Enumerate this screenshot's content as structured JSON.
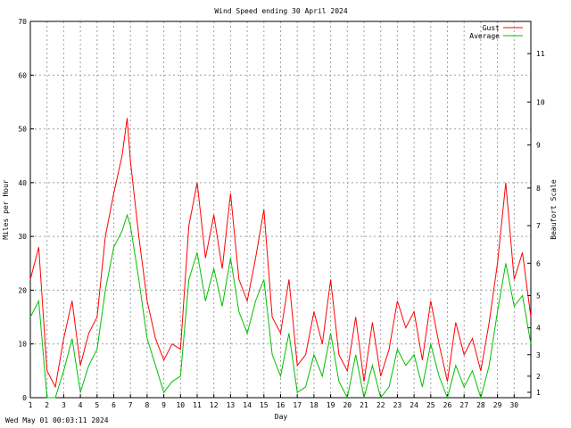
{
  "chart_data": {
    "type": "line",
    "title": "Wind Speed ending 30 April 2024",
    "xlabel": "Day",
    "ylabel": "Miles per Hour",
    "y2label": "Beaufort Scale",
    "ylim": [
      0,
      70
    ],
    "yticks": [
      0,
      10,
      20,
      30,
      40,
      50,
      60,
      70
    ],
    "xlim": [
      1,
      31
    ],
    "xticks": [
      1,
      2,
      3,
      4,
      5,
      6,
      7,
      8,
      9,
      10,
      11,
      12,
      13,
      14,
      15,
      16,
      17,
      18,
      19,
      20,
      21,
      22,
      23,
      24,
      25,
      26,
      27,
      28,
      29,
      30
    ],
    "beaufort_ticks": [
      {
        "label": "1",
        "mph": 1
      },
      {
        "label": "2",
        "mph": 4
      },
      {
        "label": "3",
        "mph": 8
      },
      {
        "label": "4",
        "mph": 13
      },
      {
        "label": "5",
        "mph": 19
      },
      {
        "label": "6",
        "mph": 25
      },
      {
        "label": "7",
        "mph": 32
      },
      {
        "label": "8",
        "mph": 39
      },
      {
        "label": "9",
        "mph": 47
      },
      {
        "label": "10",
        "mph": 55
      },
      {
        "label": "11",
        "mph": 64
      }
    ],
    "grid": true,
    "legend_position": "top-right",
    "series": [
      {
        "name": "Gust",
        "color": "#ff0000",
        "x": [
          1,
          1.5,
          2,
          2.5,
          3,
          3.5,
          4,
          4.5,
          5,
          5.5,
          6,
          6.5,
          6.8,
          7,
          7.5,
          8,
          8.5,
          9,
          9.5,
          10,
          10.5,
          11,
          11.5,
          12,
          12.5,
          13,
          13.5,
          14,
          14.5,
          15,
          15.5,
          16,
          16.5,
          17,
          17.5,
          18,
          18.5,
          19,
          19.5,
          20,
          20.5,
          21,
          21.5,
          22,
          22.5,
          23,
          23.5,
          24,
          24.5,
          25,
          25.5,
          26,
          26.5,
          27,
          27.5,
          28,
          28.5,
          29,
          29.5,
          30,
          30.5,
          31
        ],
        "y": [
          22,
          28,
          5,
          2,
          11,
          18,
          6,
          12,
          15,
          30,
          38,
          45,
          52,
          44,
          30,
          18,
          11,
          7,
          10,
          9,
          32,
          40,
          26,
          34,
          24,
          38,
          22,
          18,
          26,
          35,
          15,
          12,
          22,
          6,
          8,
          16,
          10,
          22,
          8,
          5,
          15,
          3,
          14,
          4,
          9,
          18,
          13,
          16,
          7,
          18,
          10,
          3,
          14,
          8,
          11,
          5,
          14,
          25,
          40,
          22,
          27,
          15
        ]
      },
      {
        "name": "Average",
        "color": "#00c000",
        "x": [
          1,
          1.5,
          2,
          2.5,
          3,
          3.5,
          4,
          4.5,
          5,
          5.5,
          6,
          6.5,
          6.8,
          7,
          7.5,
          8,
          8.5,
          9,
          9.5,
          10,
          10.5,
          11,
          11.5,
          12,
          12.5,
          13,
          13.5,
          14,
          14.5,
          15,
          15.5,
          16,
          16.5,
          17,
          17.5,
          18,
          18.5,
          19,
          19.5,
          20,
          20.5,
          21,
          21.5,
          22,
          22.5,
          23,
          23.5,
          24,
          24.5,
          25,
          25.5,
          26,
          26.5,
          27,
          27.5,
          28,
          28.5,
          29,
          29.5,
          30,
          30.5,
          31
        ],
        "y": [
          15,
          18,
          0,
          0,
          5,
          11,
          1,
          6,
          9,
          20,
          28,
          31,
          34,
          32,
          22,
          11,
          6,
          1,
          3,
          4,
          22,
          27,
          18,
          24,
          17,
          26,
          16,
          12,
          18,
          22,
          8,
          4,
          12,
          1,
          2,
          8,
          4,
          12,
          3,
          0,
          8,
          0,
          6,
          0,
          2,
          9,
          6,
          8,
          2,
          10,
          4,
          0,
          6,
          2,
          5,
          0,
          6,
          16,
          25,
          17,
          19,
          10
        ]
      }
    ]
  },
  "footer_timestamp": "Wed May 01 00:03:11 2024"
}
